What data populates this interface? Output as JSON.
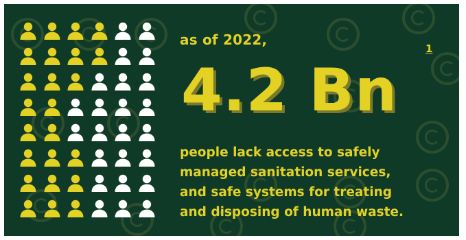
{
  "colors": {
    "background": "#0f3a27",
    "accent": "#e3d224",
    "person_highlight": "#e3d224",
    "person_neutral": "#ffffff"
  },
  "icon_grid": {
    "icon": "person-icon",
    "rows": 8,
    "columns": 6,
    "highlighted_per_row": [
      4,
      4,
      3,
      2,
      2,
      3,
      3,
      3
    ]
  },
  "intro_text": "as of 2022,",
  "footnote_label": "1",
  "headline_value": "4.2 Bn",
  "description_lines": [
    "people lack access to safely",
    "managed sanitation services,",
    "and safe systems for treating",
    "and disposing of human waste."
  ]
}
